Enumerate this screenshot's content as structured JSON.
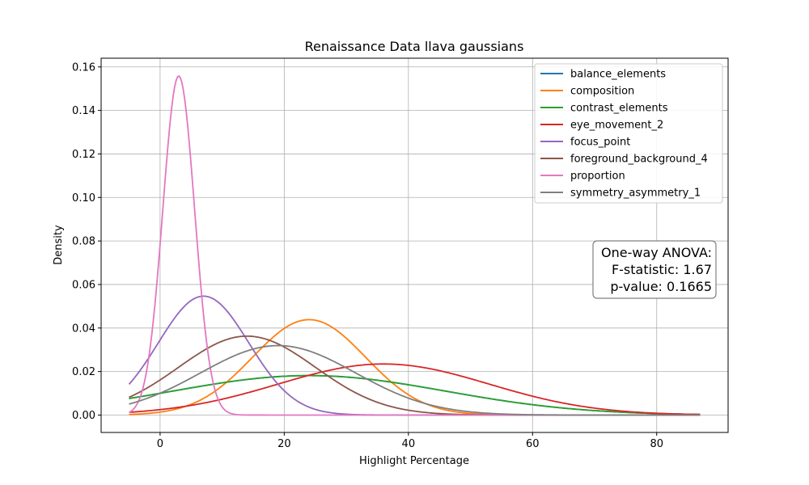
{
  "chart_data": {
    "type": "line",
    "title": "Renaissance Data llava gaussians",
    "xlabel": "Highlight Percentage",
    "ylabel": "Density",
    "xlim": [
      -9.5,
      91.5
    ],
    "ylim": [
      -0.008,
      0.164
    ],
    "x_range": [
      -5,
      87
    ],
    "xticks": [
      0,
      20,
      40,
      60,
      80
    ],
    "yticks": [
      0.0,
      0.02,
      0.04,
      0.06,
      0.08,
      0.1,
      0.12,
      0.14,
      0.16
    ],
    "xtick_labels": [
      "0",
      "20",
      "40",
      "60",
      "80"
    ],
    "ytick_labels": [
      "0.00",
      "0.02",
      "0.04",
      "0.06",
      "0.08",
      "0.10",
      "0.12",
      "0.14",
      "0.16"
    ],
    "grid": true,
    "legend_position": "top-right",
    "series": [
      {
        "name": "balance_elements",
        "color": "#1f77b4",
        "mean": 24.0,
        "std": 22.0
      },
      {
        "name": "composition",
        "color": "#ff7f0e",
        "mean": 24.0,
        "std": 9.1
      },
      {
        "name": "contrast_elements",
        "color": "#2ca02c",
        "mean": 24.0,
        "std": 22.0
      },
      {
        "name": "eye_movement_2",
        "color": "#d62728",
        "mean": 36.0,
        "std": 17.0
      },
      {
        "name": "focus_point",
        "color": "#9467bd",
        "mean": 7.0,
        "std": 7.3
      },
      {
        "name": "foreground_background_4",
        "color": "#8c564b",
        "mean": 14.0,
        "std": 11.0
      },
      {
        "name": "proportion",
        "color": "#e377c2",
        "mean": 3.0,
        "std": 2.56
      },
      {
        "name": "symmetry_asymmetry_1",
        "color": "#7f7f7f",
        "mean": 19.0,
        "std": 12.5
      }
    ],
    "annotation": {
      "line1": "One-way ANOVA:",
      "line2": "F-statistic: 1.67",
      "line3": "p-value: 0.1665"
    }
  }
}
